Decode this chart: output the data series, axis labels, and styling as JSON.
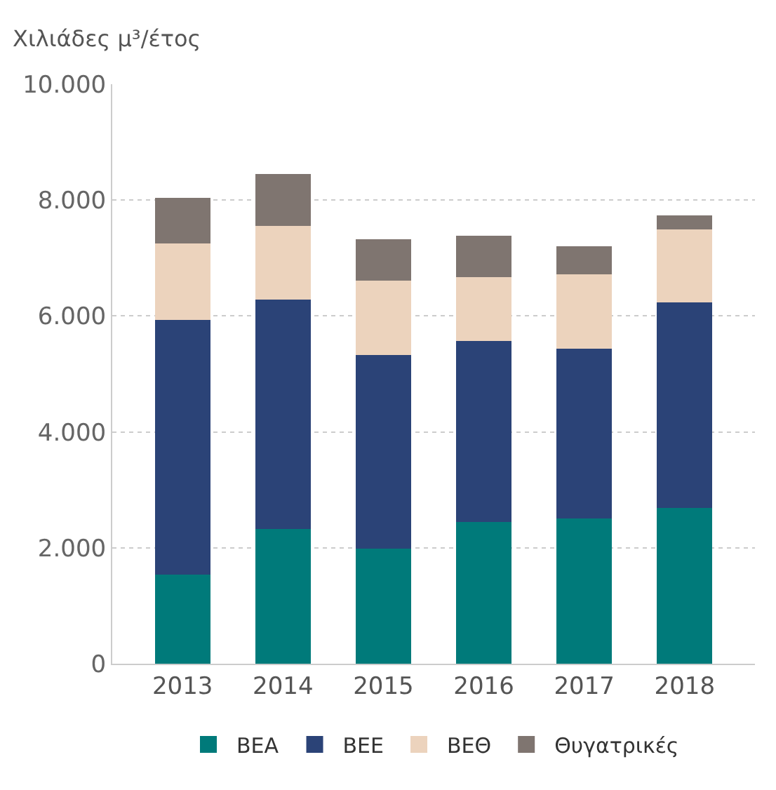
{
  "chart_data": {
    "type": "bar",
    "stacked": true,
    "ylabel": "Χιλιάδες μ³/έτος",
    "categories": [
      "2013",
      "2014",
      "2015",
      "2016",
      "2017",
      "2018"
    ],
    "series": [
      {
        "name": "ΒΕΑ",
        "color": "#007a7a",
        "values": [
          1540,
          2320,
          1980,
          2440,
          2510,
          2690
        ]
      },
      {
        "name": "ΒΕΕ",
        "color": "#2b4377",
        "values": [
          4390,
          3960,
          3350,
          3130,
          2930,
          3540
        ]
      },
      {
        "name": "ΒΕΘ",
        "color": "#ecd3bd",
        "values": [
          1320,
          1280,
          1280,
          1100,
          1280,
          1270
        ]
      },
      {
        "name": "Θυγατρικές",
        "color": "#7f7570",
        "values": [
          790,
          890,
          710,
          720,
          480,
          240
        ]
      }
    ],
    "ylim": [
      0,
      10000
    ],
    "yticks": [
      {
        "value": 0,
        "label": "0"
      },
      {
        "value": 2000,
        "label": "2.000"
      },
      {
        "value": 4000,
        "label": "4.000"
      },
      {
        "value": 6000,
        "label": "6.000"
      },
      {
        "value": 8000,
        "label": "8.000"
      },
      {
        "value": 10000,
        "label": "10.000"
      }
    ],
    "grid": "y",
    "legend": "bottom"
  }
}
